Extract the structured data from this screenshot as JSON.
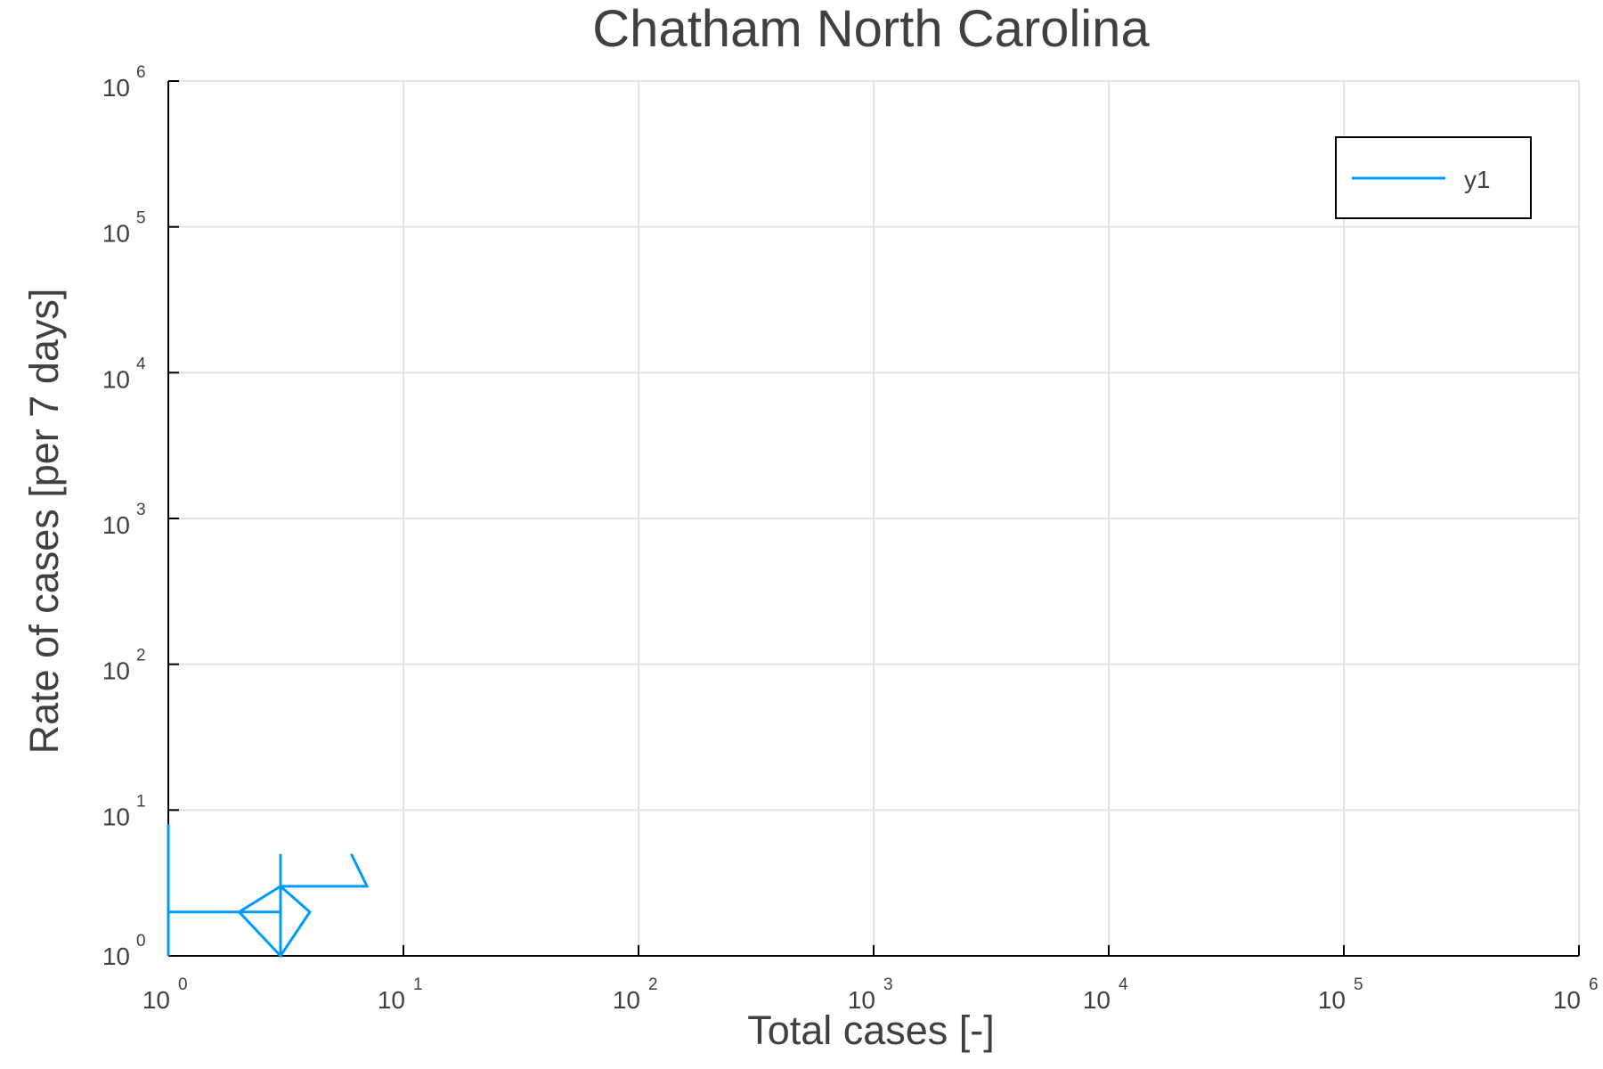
{
  "chart_data": {
    "type": "line",
    "title": "Chatham North Carolina",
    "xlabel": "Total cases [-]",
    "ylabel": "Rate of cases [per 7 days]",
    "xscale": "log",
    "yscale": "log",
    "xlim": [
      1,
      1000000
    ],
    "ylim": [
      1,
      1000000
    ],
    "grid": true,
    "legend_position": "top-right",
    "x_ticks": [
      {
        "base": "10",
        "exp": "0"
      },
      {
        "base": "10",
        "exp": "1"
      },
      {
        "base": "10",
        "exp": "2"
      },
      {
        "base": "10",
        "exp": "3"
      },
      {
        "base": "10",
        "exp": "4"
      },
      {
        "base": "10",
        "exp": "5"
      },
      {
        "base": "10",
        "exp": "6"
      }
    ],
    "y_ticks": [
      {
        "base": "10",
        "exp": "0"
      },
      {
        "base": "10",
        "exp": "1"
      },
      {
        "base": "10",
        "exp": "2"
      },
      {
        "base": "10",
        "exp": "3"
      },
      {
        "base": "10",
        "exp": "4"
      },
      {
        "base": "10",
        "exp": "5"
      },
      {
        "base": "10",
        "exp": "6"
      }
    ],
    "series": [
      {
        "name": "y1",
        "color": "#009AFA",
        "x": [
          1,
          1,
          1,
          1,
          1,
          2,
          3,
          3,
          3,
          3,
          2,
          3,
          4,
          3,
          3,
          3,
          7,
          6
        ],
        "y": [
          1,
          8,
          2,
          2,
          2,
          2,
          2,
          2,
          1,
          3,
          2,
          1,
          2,
          3,
          5,
          3,
          3,
          5
        ]
      }
    ]
  }
}
